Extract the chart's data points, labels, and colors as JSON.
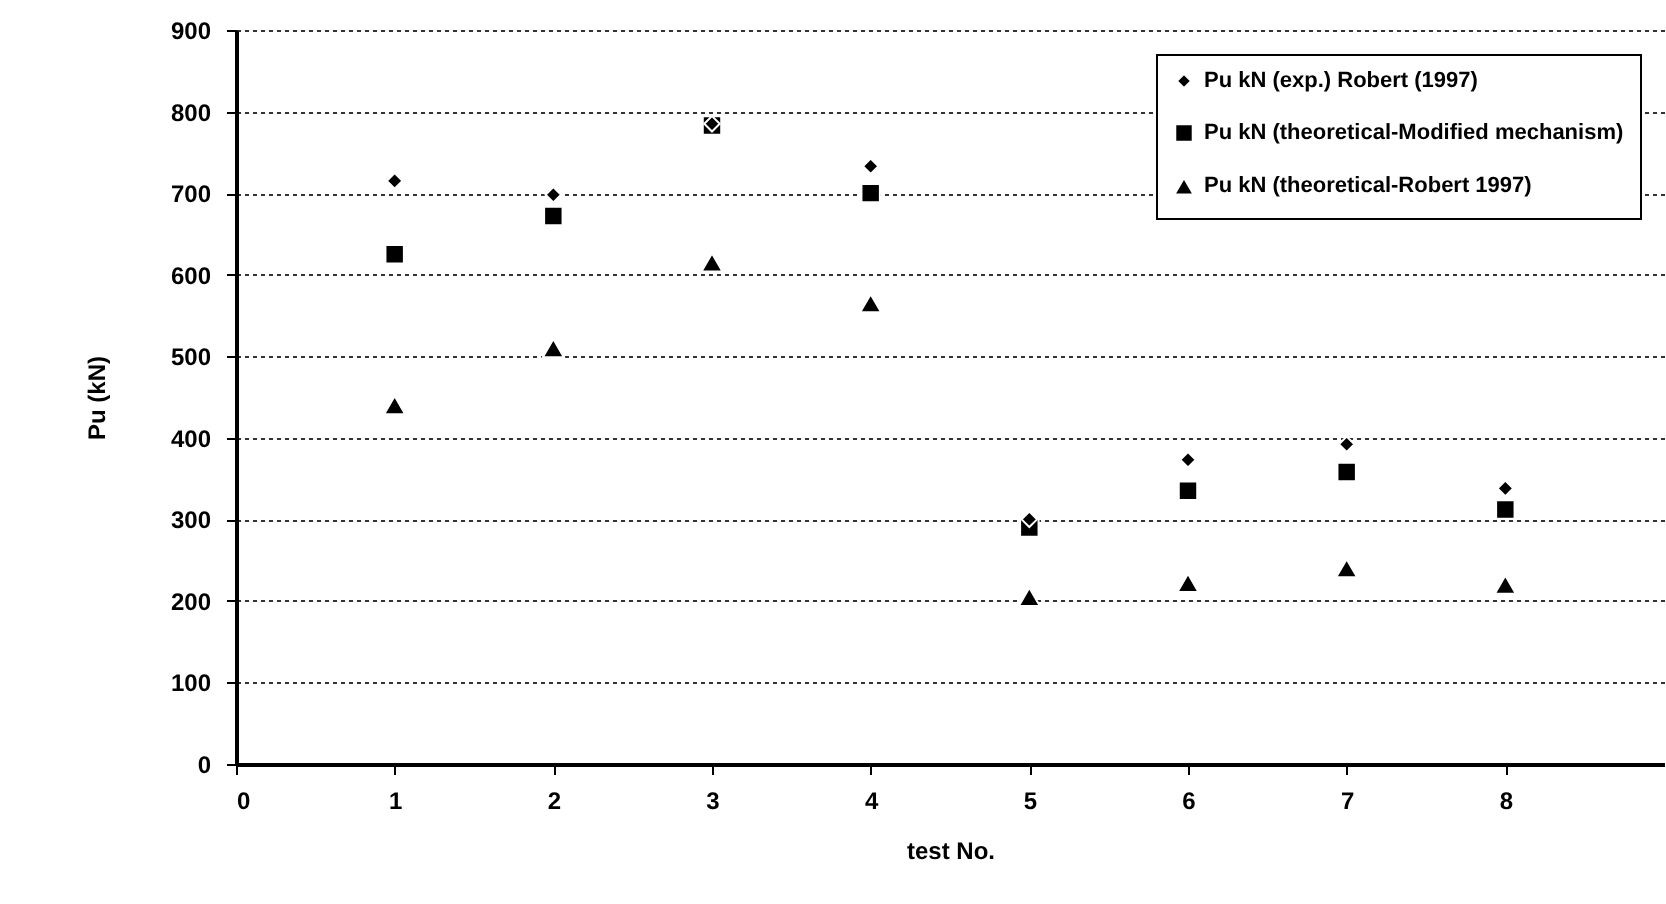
{
  "chart_data": {
    "type": "scatter",
    "xlabel": "test No.",
    "ylabel": "Pu (kN)",
    "x": [
      1,
      2,
      3,
      4,
      5,
      6,
      7,
      8
    ],
    "series": [
      {
        "name": "Pu kN (exp.) Robert (1997)",
        "color": "#000000",
        "marker": "diamond",
        "values": [
          715,
          698,
          785,
          733,
          300,
          373,
          392,
          338
        ]
      },
      {
        "name": "Pu kN (theoretical-Modified mechanism)",
        "color": "#000000",
        "marker": "square",
        "values": [
          625,
          672,
          783,
          700,
          290,
          335,
          358,
          312
        ]
      },
      {
        "name": "Pu  kN (theoretical-Robert 1997)",
        "color": "#000000",
        "marker": "triangle",
        "values": [
          440,
          510,
          615,
          565,
          205,
          222,
          240,
          220
        ]
      }
    ],
    "xlim": [
      0,
      9
    ],
    "xticks": [
      0,
      1,
      2,
      3,
      4,
      5,
      6,
      7,
      8
    ],
    "ylim": [
      0,
      900
    ],
    "yticks": [
      0,
      100,
      200,
      300,
      400,
      500,
      600,
      700,
      800,
      900
    ],
    "grid": "y",
    "legend": "top right"
  }
}
